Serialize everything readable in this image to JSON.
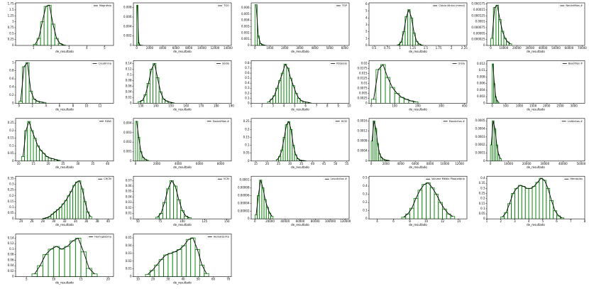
{
  "chart_data": [
    {
      "type": "histogram",
      "legend": "Magnésio",
      "xlabel": "de_resultado",
      "color": "#008000",
      "kde_color": "#000000",
      "bins": [
        1.0,
        1.2,
        1.4,
        1.6,
        1.8,
        2.0,
        2.2,
        2.4,
        2.6,
        2.8
      ],
      "counts": [
        0.05,
        0.3,
        1.0,
        1.65,
        1.7,
        0.9,
        0.3,
        0.08,
        0.02
      ],
      "xlim": [
        0,
        5.5
      ],
      "xticks": [
        1,
        2,
        3,
        4,
        5
      ],
      "ylim": [
        0,
        1.8
      ],
      "yticks": [
        0,
        0.25,
        0.5,
        0.75,
        1,
        1.25,
        1.5,
        1.75
      ]
    },
    {
      "type": "histogram",
      "legend": "TGO",
      "xlabel": "de_resultado",
      "color": "#008000",
      "kde_color": "#000000",
      "bins": [
        0,
        200,
        400,
        600,
        800,
        1000
      ],
      "counts": [
        0.0085,
        0.0006,
        0.0001,
        3e-05,
        1e-05
      ],
      "xlim": [
        -500,
        14500
      ],
      "xticks": [
        0,
        2000,
        4000,
        6000,
        8000,
        10000,
        12000,
        14000
      ],
      "ylim": [
        0,
        0.009
      ],
      "yticks": [
        0,
        0.002,
        0.004,
        0.006,
        0.008
      ]
    },
    {
      "type": "histogram",
      "legend": "TGP",
      "xlabel": "de_resultado",
      "color": "#008000",
      "kde_color": "#000000",
      "bins": [
        0,
        150,
        300,
        450,
        600,
        750
      ],
      "counts": [
        0.0065,
        0.0015,
        0.0003,
        0.0001,
        3e-05
      ],
      "xlim": [
        -250,
        6300
      ],
      "xticks": [
        0,
        1000,
        2000,
        3000,
        4000,
        5000,
        6000
      ],
      "ylim": [
        0,
        0.0068
      ],
      "yticks": [
        0,
        0.001,
        0.002,
        0.003,
        0.004,
        0.005,
        0.006
      ]
    },
    {
      "type": "histogram",
      "legend": "Cálcio iônico (mmol)",
      "xlabel": "de_resultado",
      "color": "#008000",
      "kde_color": "#000000",
      "bins": [
        0.95,
        1.0,
        1.05,
        1.1,
        1.15,
        1.2,
        1.25,
        1.3,
        1.35,
        1.4,
        1.45
      ],
      "counts": [
        0.1,
        0.5,
        2,
        4.2,
        5.2,
        4,
        1.8,
        0.6,
        0.2,
        0.05
      ],
      "xlim": [
        0.4,
        2.3
      ],
      "xticks": [
        0.5,
        0.75,
        1,
        1.25,
        1.5,
        1.75,
        2,
        2.25
      ],
      "ylim": [
        0,
        6.2
      ],
      "yticks": [
        0,
        1,
        2,
        3,
        4,
        5,
        6
      ]
    },
    {
      "type": "histogram",
      "legend": "Neutrófilos #",
      "xlabel": "de_resultado",
      "color": "#008000",
      "kde_color": "#000000",
      "bins": [
        0,
        2000,
        4000,
        6000,
        8000,
        10000,
        12000,
        14000,
        16000
      ],
      "counts": [
        3e-05,
        0.00016,
        0.00017,
        0.00011,
        6e-05,
        3e-05,
        1.5e-05,
        7e-06
      ],
      "xlim": [
        -3000,
        72000
      ],
      "xticks": [
        0,
        10000,
        20000,
        30000,
        40000,
        50000,
        60000,
        70000
      ],
      "ylim": [
        0,
        0.00018
      ],
      "yticks": [
        0,
        2.5e-05,
        5e-05,
        7.5e-05,
        0.0001,
        0.000125,
        0.00015,
        0.000175
      ]
    },
    {
      "type": "histogram",
      "legend": "Creatinina",
      "xlabel": "de_resultado",
      "color": "#008000",
      "kde_color": "#000000",
      "bins": [
        0,
        0.5,
        1,
        1.5,
        2,
        2.5,
        3,
        3.5,
        4
      ],
      "counts": [
        0.05,
        0.9,
        1.0,
        0.3,
        0.1,
        0.05,
        0.03,
        0.02
      ],
      "xlim": [
        -0.5,
        14
      ],
      "xticks": [
        0,
        2,
        4,
        6,
        8,
        10,
        12
      ],
      "ylim": [
        0,
        1.05
      ],
      "yticks": [
        0,
        0.2,
        0.4,
        0.6,
        0.8,
        1
      ]
    },
    {
      "type": "histogram",
      "legend": "Sódio",
      "xlabel": "de_resultado",
      "color": "#008000",
      "kde_color": "#000000",
      "bins": [
        128,
        130,
        132,
        134,
        136,
        138,
        140,
        142,
        144,
        146,
        148,
        150,
        152
      ],
      "counts": [
        0.005,
        0.01,
        0.03,
        0.07,
        0.12,
        0.14,
        0.09,
        0.04,
        0.015,
        0.008,
        0.004,
        0.002
      ],
      "xlim": [
        125,
        190
      ],
      "xticks": [
        130,
        140,
        150,
        160,
        170,
        180,
        190
      ],
      "ylim": [
        0,
        0.15
      ],
      "yticks": [
        0,
        0.02,
        0.04,
        0.06,
        0.08,
        0.1,
        0.12,
        0.14
      ]
    },
    {
      "type": "histogram",
      "legend": "Potássio",
      "xlabel": "de_resultado",
      "color": "#008000",
      "kde_color": "#000000",
      "bins": [
        2.5,
        2.75,
        3,
        3.25,
        3.5,
        3.75,
        4,
        4.25,
        4.5,
        4.75,
        5,
        5.25,
        5.5,
        5.75,
        6,
        6.25,
        6.5
      ],
      "counts": [
        0.03,
        0.08,
        0.15,
        0.3,
        0.45,
        0.6,
        0.78,
        0.7,
        0.5,
        0.35,
        0.2,
        0.1,
        0.05,
        0.03,
        0.02,
        0.01
      ],
      "xlim": [
        1,
        10
      ],
      "xticks": [
        1,
        2,
        3,
        4,
        5,
        6,
        7,
        8,
        9,
        10
      ],
      "ylim": [
        0,
        0.85
      ],
      "yticks": [
        0,
        0.1,
        0.2,
        0.3,
        0.4,
        0.5,
        0.6,
        0.7,
        0.8
      ]
    },
    {
      "type": "histogram",
      "legend": "Uréia",
      "xlabel": "de_resultado",
      "color": "#008000",
      "kde_color": "#000000",
      "bins": [
        0,
        20,
        40,
        60,
        80,
        100,
        120,
        140,
        160,
        180,
        200
      ],
      "counts": [
        0.002,
        0.017,
        0.0195,
        0.013,
        0.008,
        0.005,
        0.003,
        0.002,
        0.0012,
        0.0007
      ],
      "xlim": [
        -10,
        410
      ],
      "xticks": [
        0,
        100,
        200,
        300,
        400
      ],
      "ylim": [
        0,
        0.0215
      ],
      "yticks": [
        0,
        0.0025,
        0.005,
        0.0075,
        0.01,
        0.0125,
        0.015,
        0.0175,
        0.02
      ]
    },
    {
      "type": "histogram",
      "legend": "Basófilos #",
      "xlabel": "de_resultado",
      "color": "#008000",
      "kde_color": "#000000",
      "bins": [
        0,
        50,
        100,
        150,
        200,
        250
      ],
      "counts": [
        0.012,
        0.006,
        0.002,
        0.0008,
        0.0003
      ],
      "xlim": [
        -200,
        3400
      ],
      "xticks": [
        0,
        500,
        1000,
        1500,
        2000,
        2500,
        3000
      ],
      "ylim": [
        0,
        0.013
      ],
      "yticks": [
        0,
        0.002,
        0.004,
        0.006,
        0.008,
        0.01,
        0.012
      ]
    },
    {
      "type": "histogram",
      "legend": "RDW",
      "xlabel": "de_resultado",
      "color": "#008000",
      "kde_color": "#000000",
      "bins": [
        11,
        12,
        13,
        14,
        15,
        16,
        17,
        18,
        19,
        20,
        21,
        22,
        23,
        24
      ],
      "counts": [
        0.03,
        0.2,
        0.26,
        0.2,
        0.15,
        0.1,
        0.07,
        0.05,
        0.03,
        0.02,
        0.015,
        0.01,
        0.005
      ],
      "xlim": [
        9,
        42
      ],
      "xticks": [
        10,
        15,
        20,
        25,
        30,
        35,
        40
      ],
      "ylim": [
        0,
        0.28
      ],
      "yticks": [
        0,
        0.05,
        0.1,
        0.15,
        0.2,
        0.25
      ]
    },
    {
      "type": "histogram",
      "legend": "Eosinófilos #",
      "xlabel": "de_resultado",
      "color": "#008000",
      "kde_color": "#000000",
      "bins": [
        0,
        200,
        400,
        600,
        800,
        1000,
        1200
      ],
      "counts": [
        0.0042,
        0.0025,
        0.001,
        0.0004,
        0.0002,
        0.0001
      ],
      "xlim": [
        -200,
        9000
      ],
      "xticks": [
        0,
        2000,
        4000,
        6000,
        8000
      ],
      "ylim": [
        0,
        0.0045
      ],
      "yticks": [
        0,
        0.001,
        0.002,
        0.003,
        0.004
      ]
    },
    {
      "type": "histogram",
      "legend": "HCM",
      "xlabel": "de_resultado",
      "color": "#008000",
      "kde_color": "#000000",
      "bins": [
        24,
        25,
        26,
        27,
        28,
        29,
        30,
        31,
        32,
        33,
        34,
        35,
        36,
        37
      ],
      "counts": [
        0.01,
        0.03,
        0.07,
        0.15,
        0.23,
        0.25,
        0.2,
        0.1,
        0.04,
        0.015,
        0.006,
        0.003,
        0.002
      ],
      "xlim": [
        13,
        56
      ],
      "xticks": [
        15,
        20,
        25,
        30,
        35,
        40,
        45,
        50,
        55
      ],
      "ylim": [
        0,
        0.27
      ],
      "yticks": [
        0,
        0.05,
        0.1,
        0.15,
        0.2,
        0.25
      ]
    },
    {
      "type": "histogram",
      "legend": "Monócitos #",
      "xlabel": "de_resultado",
      "color": "#008000",
      "kde_color": "#000000",
      "bins": [
        0,
        250,
        500,
        750,
        1000,
        1250,
        1500,
        1750,
        2000,
        2250,
        2500
      ],
      "counts": [
        0.0008,
        0.0016,
        0.0013,
        0.0007,
        0.0003,
        0.00015,
        8e-05,
        5e-05,
        3e-05,
        2e-05
      ],
      "xlim": [
        -300,
        13000
      ],
      "xticks": [
        0,
        2000,
        4000,
        6000,
        8000,
        10000,
        12000
      ],
      "ylim": [
        0,
        0.0017
      ],
      "yticks": [
        0,
        0.0004,
        0.0008,
        0.0012,
        0.0016
      ]
    },
    {
      "type": "histogram",
      "legend": "Linfócitos #",
      "xlabel": "de_resultado",
      "color": "#008000",
      "kde_color": "#000000",
      "bins": [
        0,
        1000,
        2000,
        3000,
        4000,
        5000,
        6000
      ],
      "counts": [
        0.0002,
        0.0005,
        0.0004,
        0.0002,
        8e-05,
        3e-05
      ],
      "xlim": [
        -2000,
        52000
      ],
      "xticks": [
        0,
        10000,
        20000,
        30000,
        40000,
        50000
      ],
      "ylim": [
        0,
        0.00053
      ],
      "yticks": [
        0,
        0.0001,
        0.0002,
        0.0003,
        0.0004,
        0.0005
      ]
    },
    {
      "type": "histogram",
      "legend": "CHCM",
      "xlabel": "de_resultado",
      "color": "#008000",
      "kde_color": "#000000",
      "bins": [
        28,
        28.5,
        29,
        29.5,
        30,
        30.5,
        31,
        31.5,
        32,
        32.5,
        33,
        33.5,
        34,
        34.5,
        35,
        35.5,
        36,
        36.5,
        37
      ],
      "counts": [
        0.005,
        0.01,
        0.02,
        0.04,
        0.06,
        0.08,
        0.1,
        0.13,
        0.16,
        0.2,
        0.24,
        0.29,
        0.32,
        0.33,
        0.26,
        0.15,
        0.06,
        0.02
      ],
      "xlim": [
        23,
        41
      ],
      "xticks": [
        24,
        26,
        28,
        30,
        32,
        34,
        36,
        38,
        40
      ],
      "ylim": [
        0,
        0.37
      ],
      "yticks": [
        0,
        0.05,
        0.1,
        0.15,
        0.2,
        0.25,
        0.3,
        0.35
      ]
    },
    {
      "type": "histogram",
      "legend": "VCM",
      "xlabel": "de_resultado",
      "color": "#008000",
      "kde_color": "#000000",
      "bins": [
        70,
        74,
        78,
        82,
        86,
        90,
        94,
        98,
        102,
        106,
        110
      ],
      "counts": [
        0.003,
        0.01,
        0.03,
        0.055,
        0.07,
        0.06,
        0.035,
        0.015,
        0.005,
        0.002
      ],
      "xlim": [
        45,
        155
      ],
      "xticks": [
        50,
        75,
        100,
        125,
        150
      ],
      "ylim": [
        0,
        0.078
      ],
      "yticks": [
        0,
        0.01,
        0.02,
        0.03,
        0.04,
        0.05,
        0.06,
        0.07
      ]
    },
    {
      "type": "histogram",
      "legend": "Leucócitos #",
      "xlabel": "de_resultado",
      "color": "#008000",
      "kde_color": "#000000",
      "bins": [
        0,
        3000,
        6000,
        9000,
        12000,
        15000,
        18000,
        21000,
        24000
      ],
      "counts": [
        1e-05,
        6e-05,
        0.0001,
        8e-05,
        5e-05,
        3e-05,
        1.5e-05,
        7e-06
      ],
      "xlim": [
        -5000,
        125000
      ],
      "xticks": [
        0,
        20000,
        40000,
        60000,
        80000,
        100000,
        120000
      ],
      "ylim": [
        0,
        0.00011
      ],
      "yticks": [
        0,
        2e-05,
        4e-05,
        6e-05,
        8e-05,
        0.0001
      ]
    },
    {
      "type": "histogram",
      "legend": "Volume Médio Plaquetário",
      "xlabel": "de_resultado",
      "color": "#008000",
      "kde_color": "#000000",
      "bins": [
        7,
        7.5,
        8,
        8.5,
        9,
        9.5,
        10,
        10.5,
        11,
        11.5,
        12,
        12.5,
        13,
        13.5
      ],
      "counts": [
        0.02,
        0.06,
        0.13,
        0.25,
        0.35,
        0.42,
        0.44,
        0.38,
        0.3,
        0.2,
        0.12,
        0.06,
        0.03
      ],
      "xlim": [
        3,
        15
      ],
      "xticks": [
        4,
        6,
        8,
        10,
        12,
        14
      ],
      "ylim": [
        0,
        0.52
      ],
      "yticks": [
        0,
        0.1,
        0.2,
        0.3,
        0.4,
        0.5
      ]
    },
    {
      "type": "histogram",
      "legend": "Hemácias",
      "xlabel": "de_resultado",
      "color": "#008000",
      "kde_color": "#000000",
      "bins": [
        2,
        2.25,
        2.5,
        2.75,
        3,
        3.25,
        3.5,
        3.75,
        4,
        4.25,
        4.5,
        4.75,
        5,
        5.25,
        5.5,
        5.75,
        6,
        6.25,
        6.5
      ],
      "counts": [
        0.02,
        0.06,
        0.15,
        0.25,
        0.3,
        0.33,
        0.32,
        0.3,
        0.3,
        0.32,
        0.36,
        0.4,
        0.38,
        0.3,
        0.18,
        0.08,
        0.03,
        0.01
      ],
      "xlim": [
        1,
        8
      ],
      "xticks": [
        1,
        2,
        3,
        4,
        5,
        6,
        7,
        8
      ],
      "ylim": [
        0,
        0.42
      ],
      "yticks": [
        0,
        0.05,
        0.1,
        0.15,
        0.2,
        0.25,
        0.3,
        0.35,
        0.4
      ]
    },
    {
      "type": "histogram",
      "legend": "Hemoglobina",
      "xlabel": "de_resultado",
      "color": "#008000",
      "kde_color": "#000000",
      "bins": [
        6,
        7,
        8,
        9,
        10,
        11,
        12,
        13,
        14,
        15,
        16,
        17,
        18
      ],
      "counts": [
        0.01,
        0.04,
        0.08,
        0.1,
        0.11,
        0.1,
        0.11,
        0.13,
        0.14,
        0.09,
        0.03,
        0.01
      ],
      "xlim": [
        3,
        21
      ],
      "xticks": [
        5,
        10,
        15,
        20
      ],
      "ylim": [
        0,
        0.155
      ],
      "yticks": [
        0,
        0.02,
        0.04,
        0.06,
        0.08,
        0.1,
        0.12,
        0.14
      ]
    },
    {
      "type": "histogram",
      "legend": "Hematócrito",
      "xlabel": "de_resultado",
      "color": "#008000",
      "kde_color": "#000000",
      "bins": [
        15,
        18,
        21,
        24,
        27,
        30,
        33,
        36,
        39,
        42,
        45,
        48,
        51,
        54,
        57
      ],
      "counts": [
        0.003,
        0.008,
        0.015,
        0.022,
        0.028,
        0.03,
        0.032,
        0.035,
        0.04,
        0.048,
        0.05,
        0.035,
        0.015,
        0.004
      ],
      "xlim": [
        7,
        72
      ],
      "xticks": [
        10,
        20,
        30,
        40,
        50,
        60,
        70
      ],
      "ylim": [
        0,
        0.055
      ],
      "yticks": [
        0,
        0.01,
        0.02,
        0.03,
        0.04,
        0.05
      ]
    }
  ]
}
